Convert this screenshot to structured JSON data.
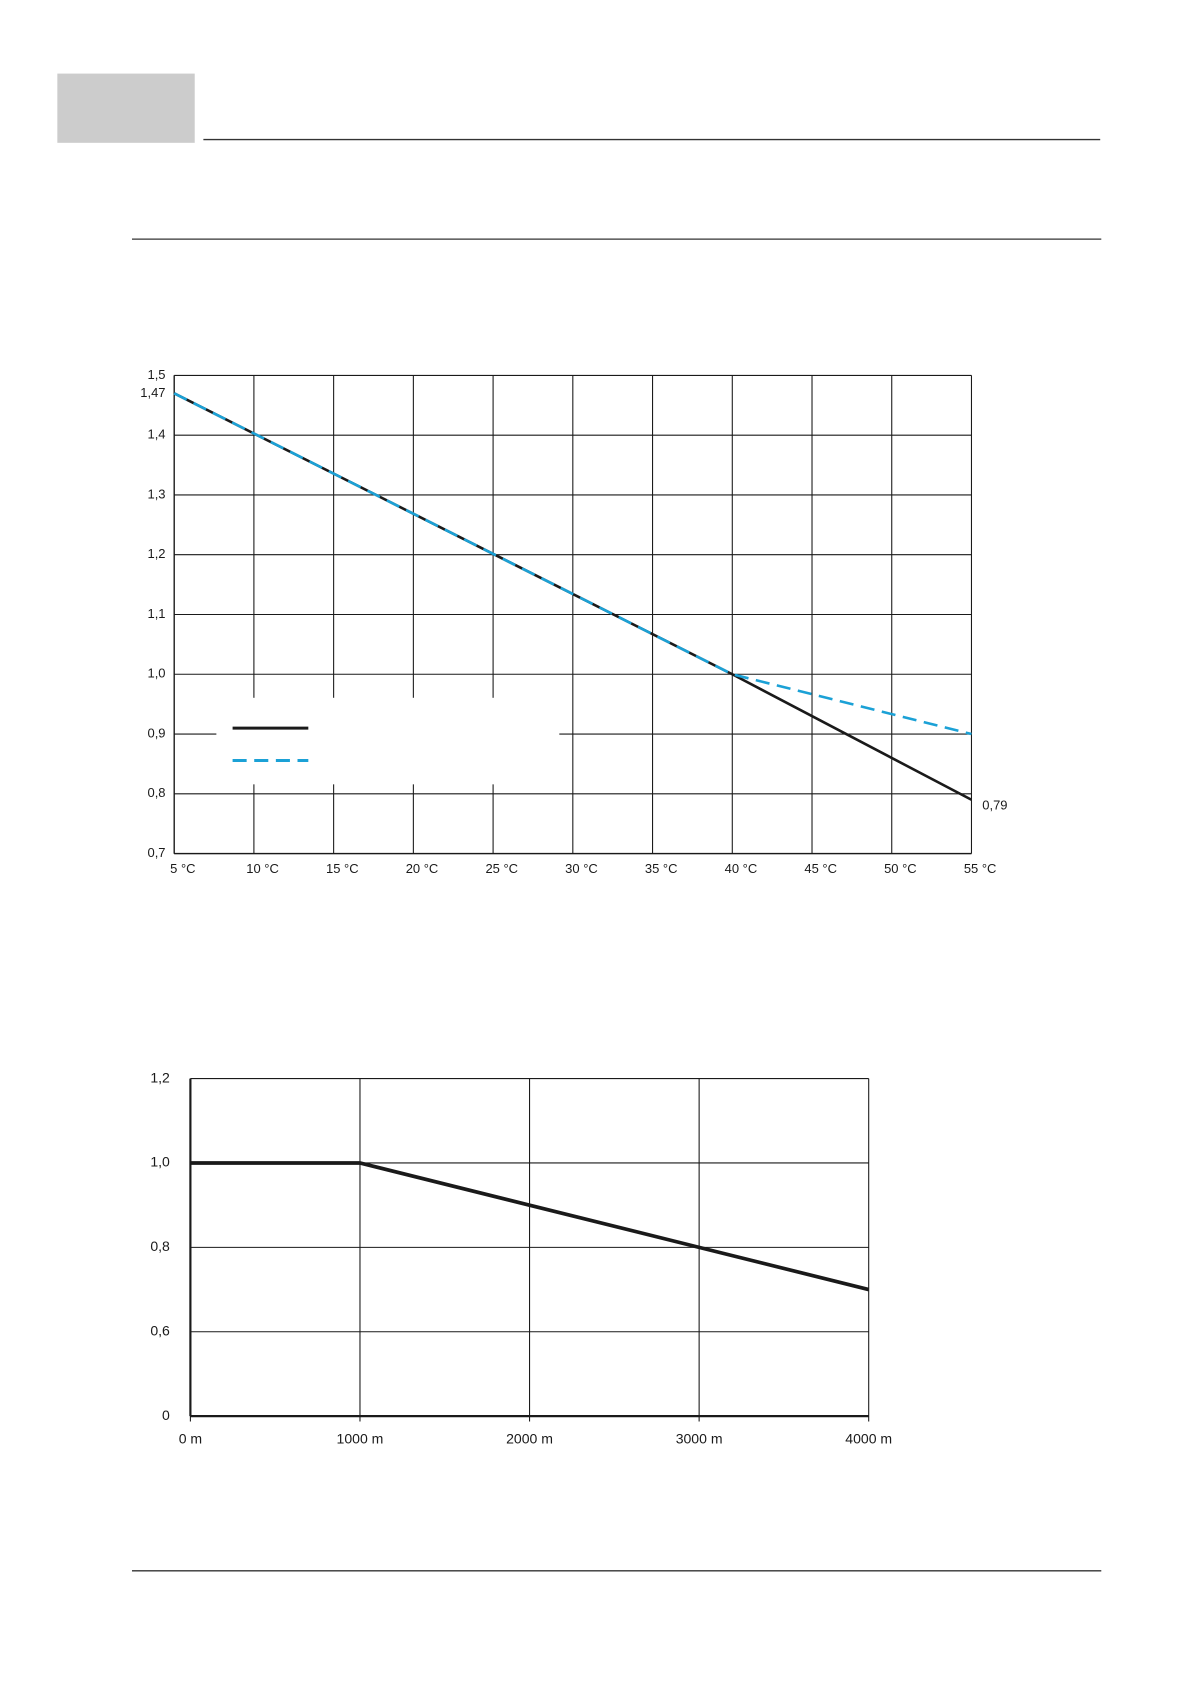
{
  "chart_data": [
    {
      "type": "line",
      "x": [
        5,
        40,
        55
      ],
      "xlim": [
        5,
        55
      ],
      "xticks": [
        {
          "value": 5,
          "label": "5 °C"
        },
        {
          "value": 10,
          "label": "10 °C"
        },
        {
          "value": 15,
          "label": "15 °C"
        },
        {
          "value": 20,
          "label": "20 °C"
        },
        {
          "value": 25,
          "label": "25 °C"
        },
        {
          "value": 30,
          "label": "30 °C"
        },
        {
          "value": 35,
          "label": "35 °C"
        },
        {
          "value": 40,
          "label": "40 °C"
        },
        {
          "value": 45,
          "label": "45 °C"
        },
        {
          "value": 50,
          "label": "50 °C"
        },
        {
          "value": 55,
          "label": "55 °C"
        }
      ],
      "ylim": [
        0.7,
        1.5
      ],
      "yticks": [
        {
          "value": 0.7,
          "label": "0,7"
        },
        {
          "value": 0.8,
          "label": "0,8"
        },
        {
          "value": 0.9,
          "label": "0,9"
        },
        {
          "value": 1.0,
          "label": "1,0"
        },
        {
          "value": 1.1,
          "label": "1,1"
        },
        {
          "value": 1.2,
          "label": "1,2"
        },
        {
          "value": 1.3,
          "label": "1,3"
        },
        {
          "value": 1.4,
          "label": "1,4"
        },
        {
          "value": 1.5,
          "label": "1,5"
        }
      ],
      "grid": true,
      "legend": "lower-left",
      "series": [
        {
          "color": "#1a1a1a",
          "dash": "solid",
          "values": [
            1.47,
            1.0,
            0.79
          ]
        },
        {
          "color": "#1ba1d6",
          "dash": "dashed",
          "values": [
            1.47,
            1.0,
            0.9
          ]
        }
      ],
      "annotations": [
        {
          "x": 5,
          "y": 1.47,
          "label": "1,47",
          "side": "left"
        },
        {
          "x": 55,
          "y": 0.79,
          "label": "0,79",
          "side": "right"
        }
      ]
    },
    {
      "type": "line",
      "x": [
        0,
        1000,
        2000,
        3000,
        4000
      ],
      "xlim": [
        0,
        4000
      ],
      "xticks": [
        {
          "value": 0,
          "label": "0 m"
        },
        {
          "value": 1000,
          "label": "1000 m"
        },
        {
          "value": 2000,
          "label": "2000 m"
        },
        {
          "value": 3000,
          "label": "3000 m"
        },
        {
          "value": 4000,
          "label": "4000 m"
        }
      ],
      "ylim": [
        0,
        1.2
      ],
      "yticks": [
        0,
        {
          "value": 0.6,
          "label": "0,6"
        },
        {
          "value": 0.8,
          "label": "0,8"
        },
        {
          "value": 1.0,
          "label": "1,0"
        },
        {
          "value": 1.2,
          "label": "1,2"
        }
      ],
      "axis_break": true,
      "grid": true,
      "series": [
        {
          "color": "#1a1a1a",
          "dash": "solid",
          "values": [
            1.0,
            1.0,
            0.9,
            0.8,
            0.7
          ]
        }
      ]
    }
  ]
}
